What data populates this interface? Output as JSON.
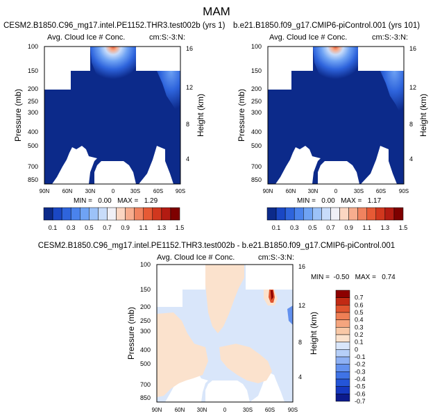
{
  "page_title": "MAM",
  "panels": [
    {
      "id": "top-left",
      "case_title": "CESM2.B1850.C96_mg17.intel.PE1152.THR3.test002b (yrs 1)",
      "var_label": "Avg. Cloud Ice # Conc.",
      "units_label": "cm:S:-3:N:",
      "min_max": "MIN =   0.00   MAX =   1.29"
    },
    {
      "id": "top-right",
      "case_title": "b.e21.B1850.f09_g17.CMIP6-piControl.001 (yrs 101)",
      "var_label": "Avg. Cloud Ice # Conc.",
      "units_label": "cm:S:-3:N:",
      "min_max": "MIN =   0.00   MAX =   1.17"
    },
    {
      "id": "bottom-diff",
      "case_title": "CESM2.B1850.C96_mg17.intel.PE1152.THR3.test002b - b.e21.B1850.f09_g17.CMIP6-piControl.001",
      "var_label": "Avg. Cloud Ice # Conc.",
      "units_label": "cm:S:-3:N:",
      "min_max": "MIN =  -0.50   MAX =   0.74"
    }
  ],
  "colorbar_abs": {
    "colors": [
      "#0c2a8a",
      "#1a47c4",
      "#2e64dc",
      "#4a83ec",
      "#6fa3f4",
      "#9cc2f8",
      "#c8dcfa",
      "#f0f0f6",
      "#fbd6c2",
      "#f7ad8e",
      "#f0835f",
      "#e65a35",
      "#d1371e",
      "#b31b12",
      "#7e0000"
    ],
    "labels": [
      "0.1",
      "0.3",
      "0.5",
      "0.7",
      "0.9",
      "1.1",
      "1.3",
      "1.5"
    ]
  },
  "colorbar_diff": {
    "colors": [
      "#0c1a8c",
      "#1538c0",
      "#2455d8",
      "#3f73e6",
      "#6391ee",
      "#8eb1f4",
      "#b6cff8",
      "#d9e6fa",
      "#fbe2cd",
      "#f9c8a6",
      "#f5a57e",
      "#ef7f55",
      "#e0552f",
      "#c22a14",
      "#8d0000"
    ],
    "labels": [
      "0.7",
      "0.6",
      "0.5",
      "0.4",
      "0.3",
      "0.2",
      "0.1",
      "0",
      "-0.1",
      "-0.2",
      "-0.3",
      "-0.4",
      "-0.5",
      "-0.6",
      "-0.7"
    ]
  },
  "chart_data": [
    {
      "type": "heatmap",
      "title": "CESM2.B1850.C96_mg17.intel.PE1152.THR3.test002b (yrs 1)",
      "subtitle": "Avg. Cloud Ice # Conc.",
      "xlabel": "",
      "ylabel": "Pressure (mb)",
      "ylabel_right": "Height (km)",
      "x_ticks": [
        "90N",
        "60N",
        "30N",
        "0",
        "30S",
        "60S",
        "90S"
      ],
      "y_ticks": [
        "100",
        "150",
        "200",
        "250",
        "300",
        "400",
        "500",
        "700",
        "850"
      ],
      "y_right_ticks": [
        "16",
        "12",
        "8",
        "4"
      ],
      "value_range": [
        0.0,
        1.29
      ],
      "note_values": {
        "min": 0.0,
        "max": 1.29
      },
      "colorbar": "abs"
    },
    {
      "type": "heatmap",
      "title": "b.e21.B1850.f09_g17.CMIP6-piControl.001 (yrs 101)",
      "subtitle": "Avg. Cloud Ice # Conc.",
      "xlabel": "",
      "ylabel": "Pressure (mb)",
      "ylabel_right": "Height (km)",
      "x_ticks": [
        "90N",
        "60N",
        "30N",
        "0",
        "30S",
        "60S",
        "90S"
      ],
      "y_ticks": [
        "100",
        "150",
        "200",
        "250",
        "300",
        "400",
        "500",
        "700",
        "850"
      ],
      "y_right_ticks": [
        "16",
        "12",
        "8",
        "4"
      ],
      "value_range": [
        0.0,
        1.17
      ],
      "note_values": {
        "min": 0.0,
        "max": 1.17
      },
      "colorbar": "abs"
    },
    {
      "type": "heatmap",
      "title": "CESM2.B1850.C96_mg17.intel.PE1152.THR3.test002b - b.e21.B1850.f09_g17.CMIP6-piControl.001",
      "subtitle": "Avg. Cloud Ice # Conc.",
      "xlabel": "",
      "ylabel": "Pressure (mb)",
      "ylabel_right": "Height (km)",
      "x_ticks": [
        "90N",
        "60N",
        "30N",
        "0",
        "30S",
        "60S",
        "90S"
      ],
      "y_ticks": [
        "100",
        "150",
        "200",
        "250",
        "300",
        "400",
        "500",
        "700",
        "850"
      ],
      "y_right_ticks": [
        "16",
        "12",
        "8",
        "4"
      ],
      "value_range": [
        -0.5,
        0.74
      ],
      "note_values": {
        "min": -0.5,
        "max": 0.74
      },
      "colorbar": "diff"
    }
  ]
}
